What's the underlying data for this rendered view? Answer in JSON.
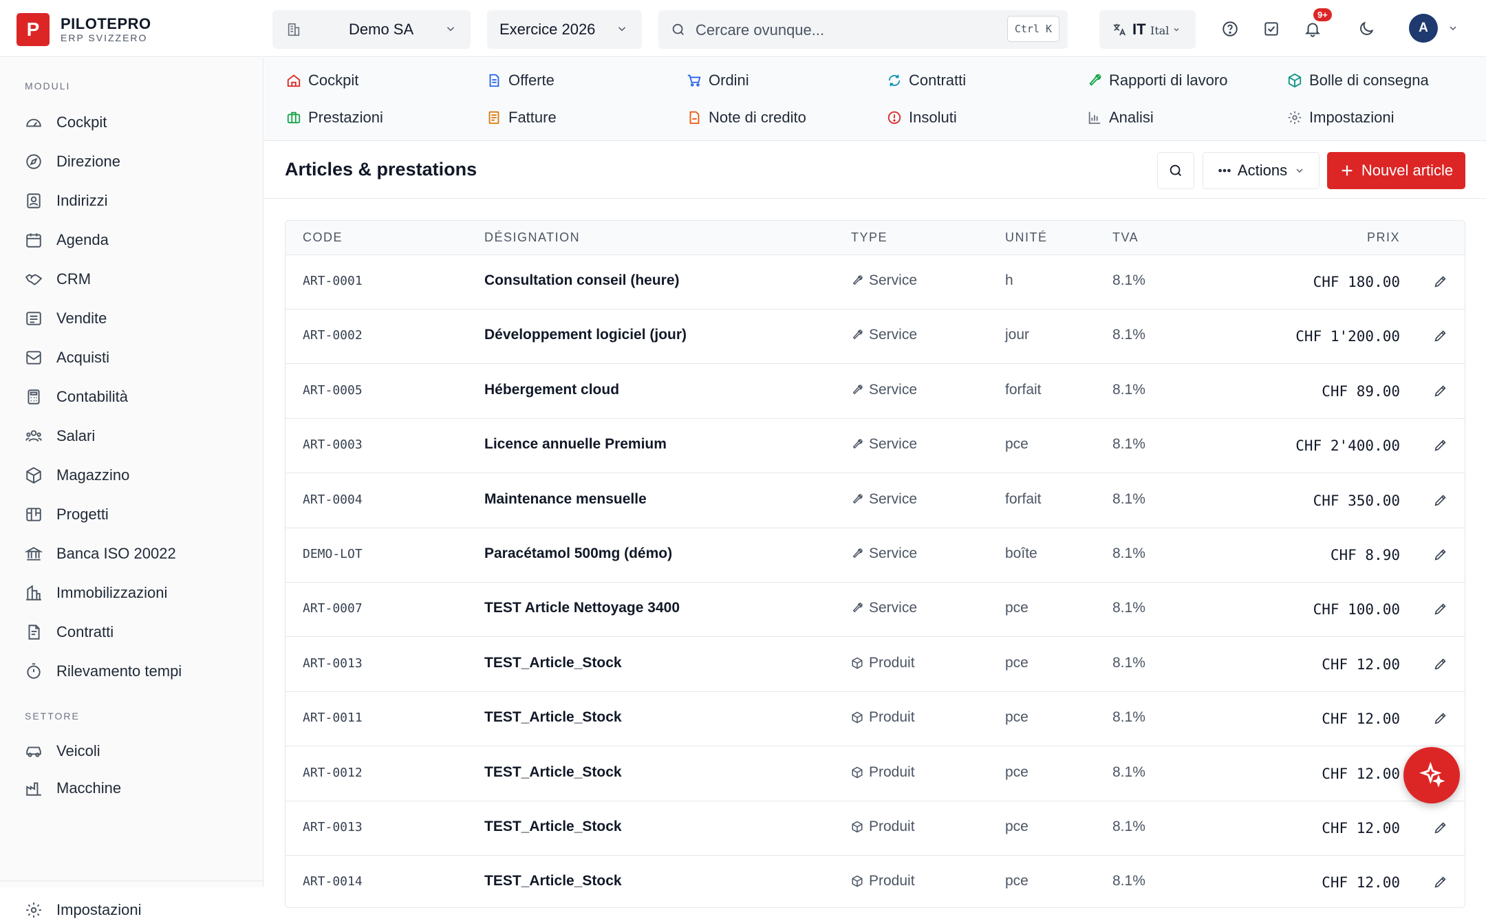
{
  "brand": {
    "logo_letter": "P",
    "title": "PILOTEPRO",
    "subtitle": "ERP SVIZZERO"
  },
  "header": {
    "company": "Demo SA",
    "fiscal_year": "Exercice 2026",
    "search_placeholder": "Cercare ovunque...",
    "search_shortcut": "Ctrl K",
    "language_code": "IT",
    "language_name": "Ital",
    "notifications_badge": "9+",
    "avatar_initial": "A"
  },
  "sidebar": {
    "section_modules": "MODULI",
    "modules": [
      {
        "label": "Cockpit",
        "icon": "gauge-icon"
      },
      {
        "label": "Direzione",
        "icon": "compass-icon"
      },
      {
        "label": "Indirizzi",
        "icon": "contacts-icon"
      },
      {
        "label": "Agenda",
        "icon": "calendar-icon"
      },
      {
        "label": "CRM",
        "icon": "handshake-icon"
      },
      {
        "label": "Vendite",
        "icon": "receipt-icon"
      },
      {
        "label": "Acquisti",
        "icon": "inbox-icon"
      },
      {
        "label": "Contabilità",
        "icon": "calculator-icon"
      },
      {
        "label": "Salari",
        "icon": "users-icon"
      },
      {
        "label": "Magazzino",
        "icon": "box-icon"
      },
      {
        "label": "Progetti",
        "icon": "kanban-icon"
      },
      {
        "label": "Banca ISO 20022",
        "icon": "bank-icon"
      },
      {
        "label": "Immobilizzazioni",
        "icon": "building-icon"
      },
      {
        "label": "Contratti",
        "icon": "file-contract-icon"
      },
      {
        "label": "Rilevamento tempi",
        "icon": "stopwatch-icon"
      }
    ],
    "section_sector": "SETTORE",
    "sector": [
      {
        "label": "Veicoli",
        "icon": "car-icon"
      },
      {
        "label": "Macchine",
        "icon": "factory-icon"
      }
    ],
    "footer": {
      "label": "Impostazioni",
      "icon": "gear-icon"
    }
  },
  "module_nav": [
    {
      "label": "Cockpit",
      "icon": "home-icon",
      "color": "#dc2626"
    },
    {
      "label": "Offerte",
      "icon": "document-icon",
      "color": "#2563eb"
    },
    {
      "label": "Ordini",
      "icon": "cart-icon",
      "color": "#2563eb"
    },
    {
      "label": "Contratti",
      "icon": "refresh-icon",
      "color": "#0891b2"
    },
    {
      "label": "Rapporti di lavoro",
      "icon": "wrench-icon",
      "color": "#16a34a"
    },
    {
      "label": "Bolle di consegna",
      "icon": "package-icon",
      "color": "#0d9488"
    },
    {
      "label": "Prestazioni",
      "icon": "briefcase-icon",
      "color": "#16a34a"
    },
    {
      "label": "Fatture",
      "icon": "invoice-icon",
      "color": "#d97706"
    },
    {
      "label": "Note di credito",
      "icon": "credit-note-icon",
      "color": "#ea580c"
    },
    {
      "label": "Insoluti",
      "icon": "alert-circle-icon",
      "color": "#dc2626"
    },
    {
      "label": "Analisi",
      "icon": "bar-chart-icon",
      "color": "#6b7280"
    },
    {
      "label": "Impostazioni",
      "icon": "gear-icon",
      "color": "#6b7280"
    }
  ],
  "page": {
    "title": "Articles & prestations",
    "actions_label": "Actions",
    "new_button_label": "Nouvel article"
  },
  "table": {
    "columns": [
      "CODE",
      "DÉSIGNATION",
      "TYPE",
      "UNITÉ",
      "TVA",
      "PRIX"
    ],
    "rows": [
      {
        "code": "ART-0001",
        "designation": "Consultation conseil (heure)",
        "type": "Service",
        "unit": "h",
        "tva": "8.1%",
        "price": "CHF 180.00"
      },
      {
        "code": "ART-0002",
        "designation": "Développement logiciel (jour)",
        "type": "Service",
        "unit": "jour",
        "tva": "8.1%",
        "price": "CHF 1'200.00"
      },
      {
        "code": "ART-0005",
        "designation": "Hébergement cloud",
        "type": "Service",
        "unit": "forfait",
        "tva": "8.1%",
        "price": "CHF 89.00"
      },
      {
        "code": "ART-0003",
        "designation": "Licence annuelle Premium",
        "type": "Service",
        "unit": "pce",
        "tva": "8.1%",
        "price": "CHF 2'400.00"
      },
      {
        "code": "ART-0004",
        "designation": "Maintenance mensuelle",
        "type": "Service",
        "unit": "forfait",
        "tva": "8.1%",
        "price": "CHF 350.00"
      },
      {
        "code": "DEMO-LOT",
        "designation": "Paracétamol 500mg (démo)",
        "type": "Service",
        "unit": "boîte",
        "tva": "8.1%",
        "price": "CHF 8.90"
      },
      {
        "code": "ART-0007",
        "designation": "TEST Article Nettoyage 3400",
        "type": "Service",
        "unit": "pce",
        "tva": "8.1%",
        "price": "CHF 100.00"
      },
      {
        "code": "ART-0013",
        "designation": "TEST_Article_Stock",
        "type": "Produit",
        "unit": "pce",
        "tva": "8.1%",
        "price": "CHF 12.00"
      },
      {
        "code": "ART-0011",
        "designation": "TEST_Article_Stock",
        "type": "Produit",
        "unit": "pce",
        "tva": "8.1%",
        "price": "CHF 12.00"
      },
      {
        "code": "ART-0012",
        "designation": "TEST_Article_Stock",
        "type": "Produit",
        "unit": "pce",
        "tva": "8.1%",
        "price": "CHF 12.00"
      },
      {
        "code": "ART-0013",
        "designation": "TEST_Article_Stock",
        "type": "Produit",
        "unit": "pce",
        "tva": "8.1%",
        "price": "CHF 12.00"
      },
      {
        "code": "ART-0014",
        "designation": "TEST_Article_Stock",
        "type": "Produit",
        "unit": "pce",
        "tva": "8.1%",
        "price": "CHF 12.00"
      }
    ]
  },
  "colors": {
    "brand": "#dc2626",
    "text": "#1f2937",
    "muted": "#6b7280",
    "border": "#e5e7eb"
  }
}
